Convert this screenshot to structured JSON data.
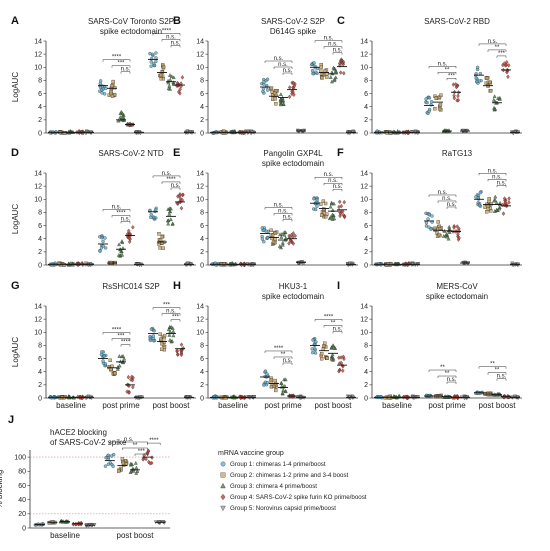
{
  "group_colors": [
    "#5aaed2",
    "#c9a25e",
    "#3f7b3a",
    "#c0392b",
    "#9a9a9a"
  ],
  "legend": {
    "title": "mRNA vaccine group",
    "items": [
      "Group 1: chimeras 1-4 prime/boost",
      "Group 2: chimeras 1-2 prime and 3-4 boost",
      "Group 3: chimera 4 prime/boost",
      "Group 4: SARS-CoV-2 spike furin KO prime/boost",
      "Group 5: Norovirus capsid prime/boost"
    ]
  },
  "chart_data": [
    {
      "letter": "A",
      "type": "scatter",
      "title": [
        "SARS-CoV Toronto S2P",
        "spike ectodomain"
      ],
      "ylabel": "LogAUC",
      "ylim": [
        0,
        14
      ],
      "yticks": [
        0,
        2,
        4,
        6,
        8,
        10,
        12,
        14
      ],
      "categories": [
        "baseline",
        "post prime",
        "post boost"
      ],
      "medians": [
        [
          0.1,
          0.1,
          0.1,
          0.1,
          0.1
        ],
        [
          7.2,
          6.8,
          2.0,
          1.3,
          0.1
        ],
        [
          11.2,
          9.2,
          7.8,
          7.3,
          0.1
        ]
      ],
      "brackets": [
        {
          "tp": 1,
          "a": 0,
          "b": 3,
          "label": "****"
        },
        {
          "tp": 1,
          "a": 1,
          "b": 3,
          "label": "***"
        },
        {
          "tp": 1,
          "a": 2,
          "b": 3,
          "label": "n.s."
        },
        {
          "tp": 2,
          "a": 0,
          "b": 3,
          "label": "****"
        },
        {
          "tp": 2,
          "a": 1,
          "b": 3,
          "label": "n.s."
        },
        {
          "tp": 2,
          "a": 2,
          "b": 3,
          "label": "n.s."
        }
      ]
    },
    {
      "letter": "B",
      "type": "scatter",
      "title": [
        "SARS-CoV-2 S2P",
        "D614G spike"
      ],
      "ylabel": "",
      "ylim": [
        0,
        14
      ],
      "yticks": [
        0,
        2,
        4,
        6,
        8,
        10,
        12,
        14
      ],
      "categories": [
        "baseline",
        "post prime",
        "post boost"
      ],
      "medians": [
        [
          0.1,
          0.1,
          0.1,
          0.1,
          0.1
        ],
        [
          7.0,
          5.6,
          5.4,
          6.6,
          0.3
        ],
        [
          10.0,
          9.2,
          9.0,
          10.1,
          0.1
        ]
      ],
      "brackets": [
        {
          "tp": 1,
          "a": 0,
          "b": 3,
          "label": "n.s."
        },
        {
          "tp": 1,
          "a": 1,
          "b": 3,
          "label": "n.s."
        },
        {
          "tp": 1,
          "a": 2,
          "b": 3,
          "label": "n.s."
        },
        {
          "tp": 2,
          "a": 0,
          "b": 3,
          "label": "n.s."
        },
        {
          "tp": 2,
          "a": 1,
          "b": 3,
          "label": "n.s."
        },
        {
          "tp": 2,
          "a": 2,
          "b": 3,
          "label": "n.s."
        }
      ]
    },
    {
      "letter": "C",
      "type": "scatter",
      "title": [
        "SARS-CoV-2 RBD"
      ],
      "ylabel": "",
      "ylim": [
        0,
        14
      ],
      "yticks": [
        0,
        2,
        4,
        6,
        8,
        10,
        12,
        14
      ],
      "categories": [
        "baseline",
        "post prime",
        "post boost"
      ],
      "medians": [
        [
          0.1,
          0.1,
          0.1,
          0.1,
          0.1
        ],
        [
          4.2,
          4.7,
          0.3,
          6.2,
          0.3
        ],
        [
          8.8,
          7.2,
          4.6,
          9.6,
          0.1
        ]
      ],
      "brackets": [
        {
          "tp": 1,
          "a": 0,
          "b": 3,
          "label": "n.s."
        },
        {
          "tp": 1,
          "a": 1,
          "b": 3,
          "label": "**"
        },
        {
          "tp": 1,
          "a": 2,
          "b": 3,
          "label": "***"
        },
        {
          "tp": 2,
          "a": 0,
          "b": 3,
          "label": "n.s."
        },
        {
          "tp": 2,
          "a": 1,
          "b": 3,
          "label": "**"
        },
        {
          "tp": 2,
          "a": 2,
          "b": 3,
          "label": "***"
        }
      ]
    },
    {
      "letter": "D",
      "type": "scatter",
      "title": [
        "SARS-CoV-2 NTD"
      ],
      "ylabel": "LogAUC",
      "ylim": [
        0,
        14
      ],
      "yticks": [
        0,
        2,
        4,
        6,
        8,
        10,
        12,
        14
      ],
      "categories": [
        "baseline",
        "post prime",
        "post boost"
      ],
      "medians": [
        [
          0.1,
          0.1,
          0.1,
          0.1,
          0.1
        ],
        [
          3.2,
          0.3,
          2.4,
          4.5,
          0.1
        ],
        [
          8.1,
          3.5,
          7.4,
          9.6,
          0.1
        ]
      ],
      "brackets": [
        {
          "tp": 1,
          "a": 0,
          "b": 3,
          "label": "n.s."
        },
        {
          "tp": 1,
          "a": 1,
          "b": 3,
          "label": "****"
        },
        {
          "tp": 1,
          "a": 2,
          "b": 3,
          "label": "n.s."
        },
        {
          "tp": 2,
          "a": 0,
          "b": 3,
          "label": "n.s."
        },
        {
          "tp": 2,
          "a": 1,
          "b": 3,
          "label": "****"
        },
        {
          "tp": 2,
          "a": 2,
          "b": 3,
          "label": "n.s."
        }
      ]
    },
    {
      "letter": "E",
      "type": "scatter",
      "title": [
        "Pangolin GXP4L",
        "spike ectodomain"
      ],
      "ylabel": "",
      "ylim": [
        0,
        14
      ],
      "yticks": [
        0,
        2,
        4,
        6,
        8,
        10,
        12,
        14
      ],
      "categories": [
        "baseline",
        "post prime",
        "post boost"
      ],
      "medians": [
        [
          0.1,
          0.1,
          0.1,
          0.1,
          0.1
        ],
        [
          4.8,
          4.2,
          3.8,
          4.0,
          0.4
        ],
        [
          9.4,
          8.6,
          8.2,
          8.4,
          0.1
        ]
      ],
      "brackets": [
        {
          "tp": 1,
          "a": 0,
          "b": 3,
          "label": "n.s."
        },
        {
          "tp": 1,
          "a": 1,
          "b": 3,
          "label": "n.s."
        },
        {
          "tp": 1,
          "a": 2,
          "b": 3,
          "label": "n.s."
        },
        {
          "tp": 2,
          "a": 0,
          "b": 3,
          "label": "n.s."
        },
        {
          "tp": 2,
          "a": 1,
          "b": 3,
          "label": "n.s."
        },
        {
          "tp": 2,
          "a": 2,
          "b": 3,
          "label": "n.s."
        }
      ]
    },
    {
      "letter": "F",
      "type": "scatter",
      "title": [
        "RaTG13"
      ],
      "ylabel": "",
      "ylim": [
        0,
        14
      ],
      "yticks": [
        0,
        2,
        4,
        6,
        8,
        10,
        12,
        14
      ],
      "categories": [
        "baseline",
        "post prime",
        "post boost"
      ],
      "medians": [
        [
          0.1,
          0.1,
          0.1,
          0.1,
          0.1
        ],
        [
          6.7,
          5.3,
          5.2,
          5.1,
          0.3
        ],
        [
          10.0,
          9.2,
          9.2,
          9.0,
          0.1
        ]
      ],
      "brackets": [
        {
          "tp": 1,
          "a": 0,
          "b": 3,
          "label": "n.s."
        },
        {
          "tp": 1,
          "a": 1,
          "b": 3,
          "label": "n.s."
        },
        {
          "tp": 1,
          "a": 2,
          "b": 3,
          "label": "n.s."
        },
        {
          "tp": 2,
          "a": 0,
          "b": 3,
          "label": "n.s."
        },
        {
          "tp": 2,
          "a": 1,
          "b": 3,
          "label": "n.s."
        },
        {
          "tp": 2,
          "a": 2,
          "b": 3,
          "label": "n.s."
        }
      ]
    },
    {
      "letter": "G",
      "type": "scatter",
      "title": [
        "RsSHC014 S2P"
      ],
      "ylabel": "LogAUC",
      "ylim": [
        0,
        14
      ],
      "yticks": [
        0,
        2,
        4,
        6,
        8,
        10,
        12,
        14
      ],
      "categories": [
        "baseline",
        "post prime",
        "post boost"
      ],
      "medians": [
        [
          0.1,
          0.1,
          0.1,
          0.1,
          0.1
        ],
        [
          6.0,
          4.6,
          5.5,
          2.0,
          0.1
        ],
        [
          9.8,
          8.6,
          9.8,
          7.5,
          0.1
        ]
      ],
      "brackets": [
        {
          "tp": 1,
          "a": 0,
          "b": 3,
          "label": "****"
        },
        {
          "tp": 1,
          "a": 1,
          "b": 3,
          "label": "***"
        },
        {
          "tp": 1,
          "a": 2,
          "b": 3,
          "label": "****"
        },
        {
          "tp": 2,
          "a": 0,
          "b": 3,
          "label": "***"
        },
        {
          "tp": 2,
          "a": 1,
          "b": 3,
          "label": "n.s."
        },
        {
          "tp": 2,
          "a": 2,
          "b": 3,
          "label": "***"
        }
      ]
    },
    {
      "letter": "H",
      "type": "scatter",
      "title": [
        "HKU3-1",
        "spike ectodomain"
      ],
      "ylabel": "",
      "ylim": [
        0,
        14
      ],
      "yticks": [
        0,
        2,
        4,
        6,
        8,
        10,
        12,
        14
      ],
      "categories": [
        "baseline",
        "post prime",
        "post boost"
      ],
      "medians": [
        [
          0.1,
          0.1,
          0.1,
          0.1,
          0.1
        ],
        [
          3.2,
          2.2,
          1.6,
          0.3,
          0.1
        ],
        [
          8.0,
          7.2,
          6.8,
          5.0,
          0.1
        ]
      ],
      "brackets": [
        {
          "tp": 1,
          "a": 0,
          "b": 3,
          "label": "****"
        },
        {
          "tp": 1,
          "a": 1,
          "b": 3,
          "label": "**"
        },
        {
          "tp": 1,
          "a": 2,
          "b": 3,
          "label": "n.s."
        },
        {
          "tp": 2,
          "a": 0,
          "b": 3,
          "label": "****"
        },
        {
          "tp": 2,
          "a": 1,
          "b": 3,
          "label": "**"
        },
        {
          "tp": 2,
          "a": 2,
          "b": 3,
          "label": "n.s."
        }
      ]
    },
    {
      "letter": "I",
      "type": "scatter",
      "title": [
        "MERS-CoV",
        "spike ectodomain"
      ],
      "ylabel": "",
      "ylim": [
        0,
        14
      ],
      "yticks": [
        0,
        2,
        4,
        6,
        8,
        10,
        12,
        14
      ],
      "categories": [
        "baseline",
        "post prime",
        "post boost"
      ],
      "medians": [
        [
          0.1,
          0.1,
          0.1,
          0.1,
          0.1
        ],
        [
          0.3,
          0.3,
          0.2,
          0.1,
          0.1
        ],
        [
          0.8,
          0.6,
          0.5,
          0.2,
          0.1
        ]
      ],
      "brackets": [
        {
          "tp": 1,
          "a": 0,
          "b": 3,
          "label": "**"
        },
        {
          "tp": 1,
          "a": 1,
          "b": 3,
          "label": "**"
        },
        {
          "tp": 1,
          "a": 2,
          "b": 3,
          "label": "n.s."
        },
        {
          "tp": 2,
          "a": 0,
          "b": 3,
          "label": "**"
        },
        {
          "tp": 2,
          "a": 1,
          "b": 3,
          "label": "**"
        },
        {
          "tp": 2,
          "a": 2,
          "b": 3,
          "label": "n.s."
        }
      ]
    },
    {
      "letter": "J",
      "type": "scatter",
      "title": [
        "hACE2 blocking",
        "of SARS-CoV-2 spike"
      ],
      "ylabel": "% blocking",
      "ylim": [
        0,
        110
      ],
      "yticks": [
        0,
        20,
        40,
        60,
        80,
        100
      ],
      "categories": [
        "baseline",
        "post boost"
      ],
      "reference_lines": [
        100,
        20
      ],
      "medians": [
        [
          5,
          8,
          9,
          6,
          4
        ],
        [
          95,
          88,
          82,
          100,
          8
        ]
      ],
      "brackets": [
        {
          "tp": 1,
          "a": 0,
          "b": 3,
          "label": "n.s."
        },
        {
          "tp": 1,
          "a": 1,
          "b": 3,
          "label": "**"
        },
        {
          "tp": 1,
          "a": 2,
          "b": 3,
          "label": "***"
        },
        {
          "tp": 1,
          "a": 3,
          "b": 4,
          "label": "****"
        }
      ]
    }
  ]
}
